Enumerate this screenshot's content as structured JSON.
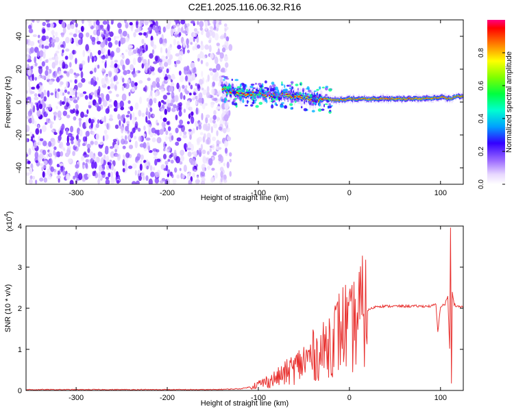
{
  "title": "C2E1.2025.116.06.32.R16",
  "chart_data": [
    {
      "type": "heatmap",
      "title": "",
      "xlabel": "Height of straight line (km)",
      "ylabel": "Frequency (Hz)",
      "xlim": [
        -355,
        125
      ],
      "ylim": [
        -50,
        50
      ],
      "xticks": [
        -300,
        -200,
        -100,
        0,
        100
      ],
      "yticks": [
        -40,
        -20,
        0,
        20,
        40
      ],
      "noise_region_x": [
        -355,
        -135
      ],
      "signal_region_x": [
        -140,
        125
      ],
      "signal_centerline": {
        "x": [
          -140,
          -120,
          -100,
          -80,
          -60,
          -45,
          -30,
          -15,
          0,
          20,
          50,
          80,
          100,
          110,
          115,
          125
        ],
        "freq_hz": [
          8,
          5,
          5,
          4,
          4,
          2,
          2,
          1,
          2,
          2,
          2,
          2,
          3,
          2,
          3,
          4
        ]
      },
      "colorbar": {
        "label": "Normalized spectral amplitude",
        "ticks": [
          "0.0",
          "0.2",
          "0.4",
          "0.6",
          "0.8"
        ],
        "range": [
          0,
          1
        ]
      }
    },
    {
      "type": "line",
      "title": "",
      "xlabel": "Height of straight line (km)",
      "ylabel": "SNR (10 * v/v)",
      "y_multiplier": "(x10",
      "y_multiplier_exp": "4",
      "xlim": [
        -355,
        125
      ],
      "ylim": [
        0,
        4
      ],
      "xticks": [
        -300,
        -200,
        -100,
        0,
        100
      ],
      "yticks": [
        0,
        1,
        2,
        3,
        4
      ],
      "grid": false,
      "series": [
        {
          "color": "#e8302e",
          "x": [
            -355,
            -150,
            -120,
            -110,
            -100,
            -90,
            -80,
            -70,
            -60,
            -50,
            -40,
            -30,
            -25,
            -20,
            -15,
            -10,
            -5,
            0,
            5,
            10,
            15,
            20,
            25,
            30,
            40,
            50,
            60,
            70,
            80,
            90,
            95,
            97,
            100,
            105,
            108,
            110,
            111,
            112,
            113,
            115,
            118,
            125
          ],
          "values": [
            0.02,
            0.02,
            0.04,
            0.08,
            0.15,
            0.22,
            0.3,
            0.42,
            0.55,
            0.7,
            0.85,
            0.9,
            1.1,
            1.25,
            1.35,
            1.45,
            1.6,
            1.4,
            1.6,
            1.8,
            1.9,
            1.95,
            2.0,
            2.05,
            2.05,
            2.05,
            2.05,
            2.05,
            2.05,
            2.05,
            2.1,
            1.4,
            2.05,
            2.1,
            2.3,
            1.0,
            3.95,
            0.15,
            2.4,
            2.1,
            2.05,
            2.03
          ]
        }
      ]
    }
  ]
}
